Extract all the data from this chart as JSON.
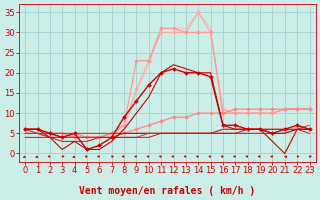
{
  "background_color": "#cceee8",
  "grid_color": "#aad4ce",
  "xlabel": "Vent moyen/en rafales ( km/h )",
  "xlabel_color": "#cc0000",
  "xlabel_fontsize": 7,
  "tick_color": "#cc0000",
  "tick_fontsize": 6,
  "ylim": [
    -2,
    37
  ],
  "xlim": [
    -0.5,
    23.5
  ],
  "yticks": [
    0,
    5,
    10,
    15,
    20,
    25,
    30,
    35
  ],
  "xticks": [
    0,
    1,
    2,
    3,
    4,
    5,
    6,
    7,
    8,
    9,
    10,
    11,
    12,
    13,
    14,
    15,
    16,
    17,
    18,
    19,
    20,
    21,
    22,
    23
  ],
  "series": [
    {
      "x": [
        0,
        1,
        2,
        3,
        4,
        5,
        6,
        7,
        8,
        9,
        10,
        11,
        12,
        13,
        14,
        15,
        16,
        17,
        18,
        19,
        20,
        21,
        22,
        23
      ],
      "y": [
        6,
        6,
        5,
        5,
        4,
        4,
        4,
        5,
        7,
        16,
        23,
        30,
        30,
        30,
        35,
        30,
        11,
        10,
        10,
        10,
        10,
        11,
        11,
        11
      ],
      "color": "#ffaaaa",
      "lw": 0.9,
      "marker": "D",
      "ms": 2.0,
      "zorder": 2
    },
    {
      "x": [
        0,
        1,
        2,
        3,
        4,
        5,
        6,
        7,
        8,
        9,
        10,
        11,
        12,
        13,
        14,
        15,
        16,
        17,
        18,
        19,
        20,
        21,
        22,
        23
      ],
      "y": [
        6,
        6,
        5,
        4,
        4,
        4,
        4,
        5,
        6,
        15,
        22,
        31,
        31,
        31,
        35,
        31,
        10,
        10,
        10,
        10,
        10,
        11,
        11,
        11
      ],
      "color": "#ffbbbb",
      "lw": 0.7,
      "marker": null,
      "ms": 0,
      "zorder": 1
    },
    {
      "x": [
        0,
        1,
        2,
        3,
        4,
        5,
        6,
        7,
        8,
        9,
        10,
        11,
        12,
        13,
        14,
        15,
        16,
        17,
        18,
        19,
        20,
        21,
        22,
        23
      ],
      "y": [
        6,
        6,
        5,
        5,
        4,
        4,
        4,
        5,
        7,
        23,
        23,
        31,
        31,
        30,
        30,
        30,
        10,
        10,
        10,
        10,
        10,
        11,
        11,
        11
      ],
      "color": "#ff9999",
      "lw": 0.9,
      "marker": "D",
      "ms": 2.0,
      "zorder": 2
    },
    {
      "x": [
        0,
        1,
        2,
        3,
        4,
        5,
        6,
        7,
        8,
        9,
        10,
        11,
        12,
        13,
        14,
        15,
        16,
        17,
        18,
        19,
        20,
        21,
        22,
        23
      ],
      "y": [
        6,
        6,
        5,
        4,
        5,
        1,
        2,
        4,
        9,
        13,
        17,
        20,
        21,
        20,
        20,
        19,
        7,
        7,
        6,
        6,
        5,
        6,
        7,
        6
      ],
      "color": "#cc0000",
      "lw": 1.0,
      "marker": "D",
      "ms": 2.0,
      "zorder": 4
    },
    {
      "x": [
        0,
        1,
        2,
        3,
        4,
        5,
        6,
        7,
        8,
        9,
        10,
        11,
        12,
        13,
        14,
        15,
        16,
        17,
        18,
        19,
        20,
        21,
        22,
        23
      ],
      "y": [
        6,
        6,
        4,
        1,
        3,
        1,
        1,
        3,
        6,
        10,
        14,
        20,
        22,
        21,
        20,
        20,
        7,
        6,
        6,
        6,
        3,
        0,
        6,
        6
      ],
      "color": "#cc0000",
      "lw": 0.8,
      "marker": null,
      "ms": 0,
      "zorder": 3
    },
    {
      "x": [
        0,
        1,
        2,
        3,
        4,
        5,
        6,
        7,
        8,
        9,
        10,
        11,
        12,
        13,
        14,
        15,
        16,
        17,
        18,
        19,
        20,
        21,
        22,
        23
      ],
      "y": [
        6,
        6,
        5,
        4,
        5,
        4,
        4,
        5,
        5,
        6,
        7,
        8,
        9,
        9,
        10,
        10,
        10,
        11,
        11,
        11,
        11,
        11,
        11,
        11
      ],
      "color": "#ff8888",
      "lw": 0.9,
      "marker": "D",
      "ms": 2.0,
      "zorder": 2
    },
    {
      "x": [
        0,
        1,
        2,
        3,
        4,
        5,
        6,
        7,
        8,
        9,
        10,
        11,
        12,
        13,
        14,
        15,
        16,
        17,
        18,
        19,
        20,
        21,
        22,
        23
      ],
      "y": [
        6,
        5,
        5,
        5,
        5,
        5,
        5,
        5,
        5,
        5,
        5,
        5,
        5,
        5,
        5,
        5,
        6,
        6,
        6,
        6,
        5,
        5,
        6,
        5
      ],
      "color": "#cc2222",
      "lw": 0.7,
      "marker": null,
      "ms": 0,
      "zorder": 2
    },
    {
      "x": [
        0,
        1,
        2,
        3,
        4,
        5,
        6,
        7,
        8,
        9,
        10,
        11,
        12,
        13,
        14,
        15,
        16,
        17,
        18,
        19,
        20,
        21,
        22,
        23
      ],
      "y": [
        5,
        5,
        4,
        4,
        4,
        4,
        4,
        4,
        5,
        5,
        5,
        5,
        5,
        5,
        5,
        5,
        5,
        5,
        5,
        5,
        5,
        5,
        6,
        6
      ],
      "color": "#bb1111",
      "lw": 0.7,
      "marker": null,
      "ms": 0,
      "zorder": 2
    },
    {
      "x": [
        0,
        1,
        2,
        3,
        4,
        5,
        6,
        7,
        8,
        9,
        10,
        11,
        12,
        13,
        14,
        15,
        16,
        17,
        18,
        19,
        20,
        21,
        22,
        23
      ],
      "y": [
        5,
        5,
        4,
        4,
        4,
        4,
        4,
        4,
        4,
        4,
        5,
        5,
        5,
        5,
        5,
        5,
        6,
        6,
        6,
        6,
        6,
        6,
        6,
        7
      ],
      "color": "#dd3333",
      "lw": 0.7,
      "marker": null,
      "ms": 0,
      "zorder": 2
    },
    {
      "x": [
        0,
        1,
        2,
        3,
        4,
        5,
        6,
        7,
        8,
        9,
        10,
        11,
        12,
        13,
        14,
        15,
        16,
        17,
        18,
        19,
        20,
        21,
        22,
        23
      ],
      "y": [
        4,
        4,
        4,
        3,
        3,
        3,
        4,
        4,
        4,
        4,
        4,
        5,
        5,
        5,
        5,
        5,
        5,
        5,
        6,
        6,
        6,
        6,
        6,
        6
      ],
      "color": "#cc1111",
      "lw": 0.7,
      "marker": null,
      "ms": 0,
      "zorder": 2
    }
  ],
  "arrow_angles": [
    225,
    225,
    315,
    45,
    225,
    315,
    315,
    45,
    315,
    315,
    315,
    315,
    315,
    315,
    315,
    315,
    315,
    315,
    315,
    315,
    315,
    270,
    45,
    45
  ]
}
